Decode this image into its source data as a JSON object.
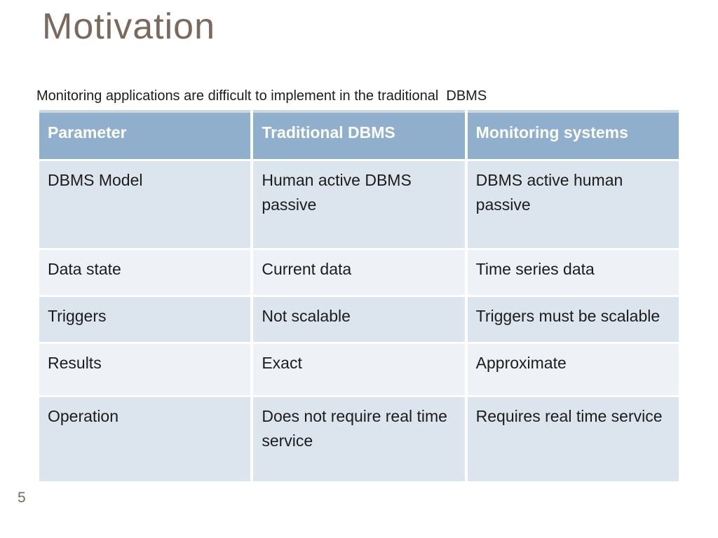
{
  "slide": {
    "title": "Motivation",
    "subtitle": "Monitoring applications are difficult to implement in the traditional  DBMS",
    "page_number": "5"
  },
  "table": {
    "columns": [
      "Parameter",
      "Traditional DBMS",
      "Monitoring systems"
    ],
    "rows": [
      [
        "DBMS Model",
        "Human active DBMS\npassive",
        "DBMS active human\npassive"
      ],
      [
        "Data state",
        "Current data",
        "Time series data"
      ],
      [
        "Triggers",
        "Not scalable",
        "Triggers must be scalable"
      ],
      [
        "Results",
        "Exact",
        "Approximate"
      ],
      [
        "Operation",
        "Does not require real time\nservice",
        "Requires real time service"
      ]
    ]
  },
  "colors": {
    "title_text": "#7b695d",
    "body_text": "#1c1c1c",
    "header_bg": "#8fafcc",
    "header_text": "#ffffff",
    "header_top_strip": "#cdd7e2",
    "row_band_dark": "#dce5ee",
    "row_band_light": "#eef2f6",
    "page_number": "#7b695d"
  }
}
